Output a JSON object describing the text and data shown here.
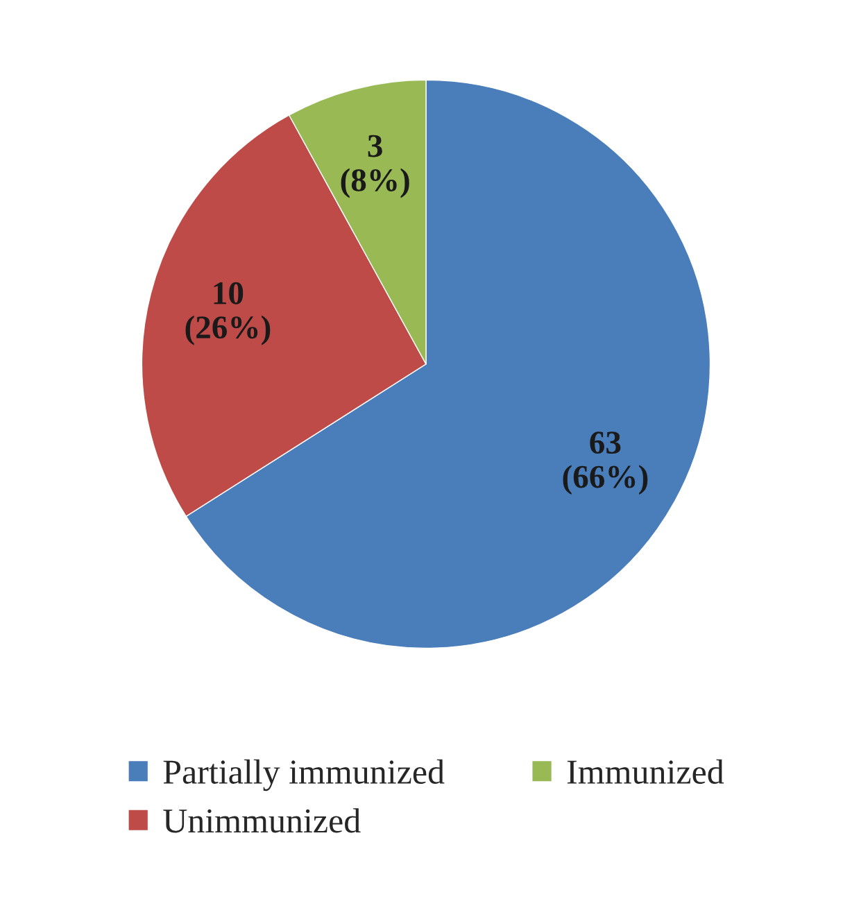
{
  "chart_data": {
    "type": "pie",
    "categories": [
      "Partially immunized",
      "Unimmunized",
      "Immunized"
    ],
    "values": [
      66,
      26,
      8
    ],
    "colors": [
      "#4a7ebb",
      "#be4b48",
      "#98b954"
    ],
    "value_labels": [
      "63\n(66%)",
      "10\n(26%)",
      "3\n(8%)"
    ],
    "legend": "bottom"
  }
}
